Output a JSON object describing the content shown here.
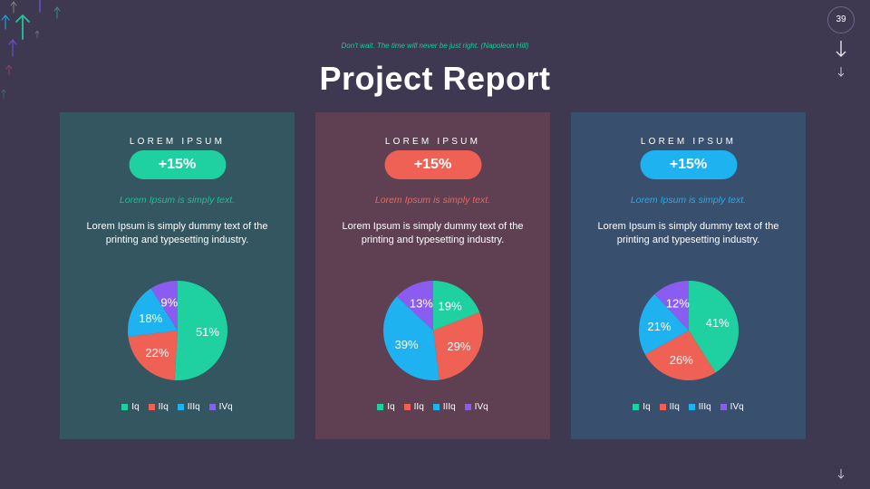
{
  "header": {
    "quote": "Don't wait. The time will never be just right. (Napoleon Hill)",
    "title": "Project Report",
    "page_number": "39"
  },
  "colors": {
    "background": "#3e3850",
    "Iq": "#1fd1a0",
    "IIq": "#ef6155",
    "IIIq": "#1eb2f0",
    "IVq": "#8a5cf0"
  },
  "cards": [
    {
      "label": "LOREM IPSUM",
      "badge": "+15%",
      "subtitle": "Lorem Ipsum is simply text.",
      "description": "Lorem Ipsum is simply dummy text of the printing and typesetting industry.",
      "background": "#345660",
      "accent": "#1fd1a0",
      "subtitle_color": "#1fbf95"
    },
    {
      "label": "LOREM IPSUM",
      "badge": "+15%",
      "subtitle": "Lorem Ipsum is simply text.",
      "description": "Lorem Ipsum is simply dummy text of the printing and typesetting industry.",
      "background": "#5e4052",
      "accent": "#ef6155",
      "subtitle_color": "#e7665d"
    },
    {
      "label": "LOREM IPSUM",
      "badge": "+15%",
      "subtitle": "Lorem Ipsum is simply text.",
      "description": "Lorem Ipsum is simply dummy text of the printing and typesetting industry.",
      "background": "#394f6e",
      "accent": "#1eb2f0",
      "subtitle_color": "#2aa9e6"
    }
  ],
  "legend": [
    "Iq",
    "IIq",
    "IIIq",
    "IVq"
  ],
  "chart_data": [
    {
      "type": "pie",
      "title": "LOREM IPSUM",
      "categories": [
        "Iq",
        "IIq",
        "IIIq",
        "IVq"
      ],
      "values": [
        51,
        22,
        18,
        9
      ],
      "labels": [
        "51%",
        "22%",
        "18%",
        "9%"
      ],
      "legend_position": "bottom"
    },
    {
      "type": "pie",
      "title": "LOREM IPSUM",
      "categories": [
        "Iq",
        "IIq",
        "IIIq",
        "IVq"
      ],
      "values": [
        19,
        29,
        39,
        13
      ],
      "labels": [
        "19%",
        "29%",
        "39%",
        "13%"
      ],
      "legend_position": "bottom"
    },
    {
      "type": "pie",
      "title": "LOREM IPSUM",
      "categories": [
        "Iq",
        "IIq",
        "IIIq",
        "IVq"
      ],
      "values": [
        41,
        26,
        21,
        12
      ],
      "labels": [
        "41%",
        "26%",
        "21%",
        "12%"
      ],
      "legend_position": "bottom"
    }
  ]
}
